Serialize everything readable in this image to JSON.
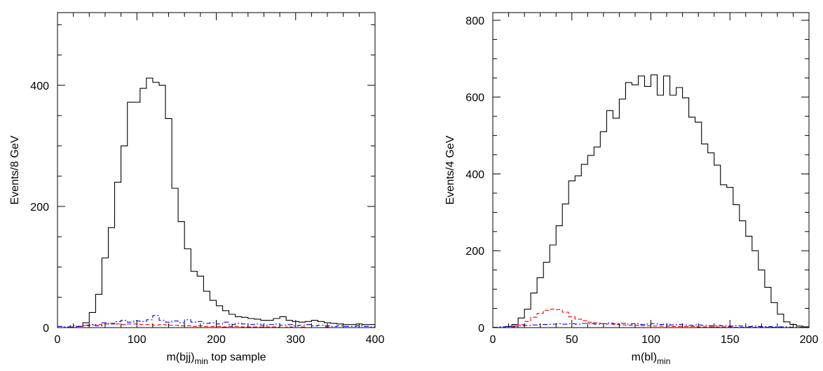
{
  "chart_data": [
    {
      "type": "histogram",
      "xlabel": "m(bjj)",
      "xlabel_sub": "min",
      "xlabel_suffix": " top sample",
      "ylabel": "Events/8 GeV",
      "xlim": [
        0,
        400
      ],
      "ylim": [
        0,
        520
      ],
      "x_ticks": [
        0,
        100,
        200,
        300,
        400
      ],
      "y_ticks": [
        0,
        200,
        400
      ],
      "grid": false,
      "series": [
        {
          "style": "solid",
          "color": "#000000",
          "bin_width": 8,
          "x_start": 0,
          "values": [
            0,
            0,
            0,
            2,
            8,
            25,
            55,
            115,
            165,
            240,
            300,
            372,
            372,
            395,
            412,
            405,
            400,
            345,
            230,
            175,
            130,
            93,
            85,
            60,
            45,
            36,
            28,
            22,
            18,
            17,
            15,
            14,
            12,
            12,
            15,
            18,
            12,
            10,
            9,
            10,
            12,
            10,
            8,
            7,
            6,
            5,
            5,
            6,
            5,
            5
          ]
        },
        {
          "style": "dashed",
          "color": "#ff0000",
          "bin_width": 8,
          "x_start": 0,
          "values": [
            0,
            0,
            1,
            2,
            3,
            4,
            5,
            6,
            7,
            6,
            5,
            6,
            6,
            5,
            5,
            4,
            5,
            4,
            4,
            3,
            3,
            2,
            3,
            2,
            2,
            2,
            1,
            2,
            2,
            1,
            1,
            1,
            1,
            1,
            1,
            0,
            1,
            0,
            1,
            0,
            0,
            0,
            1,
            0,
            0,
            0,
            0,
            0,
            0,
            0
          ]
        },
        {
          "style": "dashdot",
          "color": "#0000ff",
          "bin_width": 8,
          "x_start": 0,
          "values": [
            2,
            1,
            3,
            2,
            4,
            5,
            3,
            8,
            6,
            10,
            12,
            9,
            11,
            10,
            13,
            20,
            12,
            9,
            11,
            8,
            13,
            9,
            10,
            7,
            8,
            6,
            9,
            5,
            7,
            6,
            5,
            6,
            4,
            5,
            6,
            4,
            5,
            3,
            4,
            5,
            3,
            4,
            3,
            2,
            3,
            2,
            2,
            3,
            2,
            1
          ]
        }
      ]
    },
    {
      "type": "histogram",
      "xlabel": "m(bl)",
      "xlabel_sub": "min",
      "xlabel_suffix": "",
      "ylabel": "Events/4 GeV",
      "xlim": [
        0,
        200
      ],
      "ylim": [
        0,
        820
      ],
      "x_ticks": [
        0,
        50,
        100,
        150,
        200
      ],
      "y_ticks": [
        0,
        200,
        400,
        600,
        800
      ],
      "grid": false,
      "series": [
        {
          "style": "solid",
          "color": "#000000",
          "bin_width": 4,
          "x_start": 0,
          "values": [
            0,
            0,
            3,
            8,
            25,
            48,
            90,
            130,
            170,
            215,
            265,
            322,
            382,
            395,
            425,
            448,
            470,
            510,
            565,
            545,
            595,
            638,
            632,
            655,
            628,
            658,
            605,
            655,
            605,
            625,
            598,
            548,
            535,
            478,
            455,
            423,
            372,
            365,
            320,
            278,
            238,
            200,
            150,
            105,
            65,
            35,
            15,
            8,
            4,
            2
          ]
        },
        {
          "style": "dashed",
          "color": "#ff0000",
          "bin_width": 4,
          "x_start": 0,
          "values": [
            0,
            0,
            0,
            2,
            8,
            16,
            27,
            37,
            45,
            48,
            47,
            40,
            28,
            22,
            18,
            14,
            12,
            10,
            9,
            8,
            7,
            6,
            6,
            5,
            5,
            4,
            4,
            4,
            3,
            3,
            3,
            3,
            2,
            2,
            2,
            2,
            2,
            2,
            1,
            1,
            1,
            1,
            1,
            1,
            1,
            1,
            0,
            0,
            0,
            0
          ]
        },
        {
          "style": "dashdot",
          "color": "#0000ff",
          "bin_width": 4,
          "x_start": 0,
          "values": [
            1,
            2,
            3,
            4,
            5,
            6,
            7,
            8,
            8,
            9,
            10,
            9,
            10,
            9,
            11,
            10,
            9,
            10,
            12,
            10,
            11,
            9,
            10,
            8,
            9,
            10,
            8,
            9,
            7,
            8,
            7,
            6,
            7,
            6,
            5,
            6,
            5,
            4,
            5,
            4,
            3,
            4,
            3,
            3,
            2,
            2,
            2,
            1,
            1,
            1
          ]
        }
      ]
    }
  ]
}
